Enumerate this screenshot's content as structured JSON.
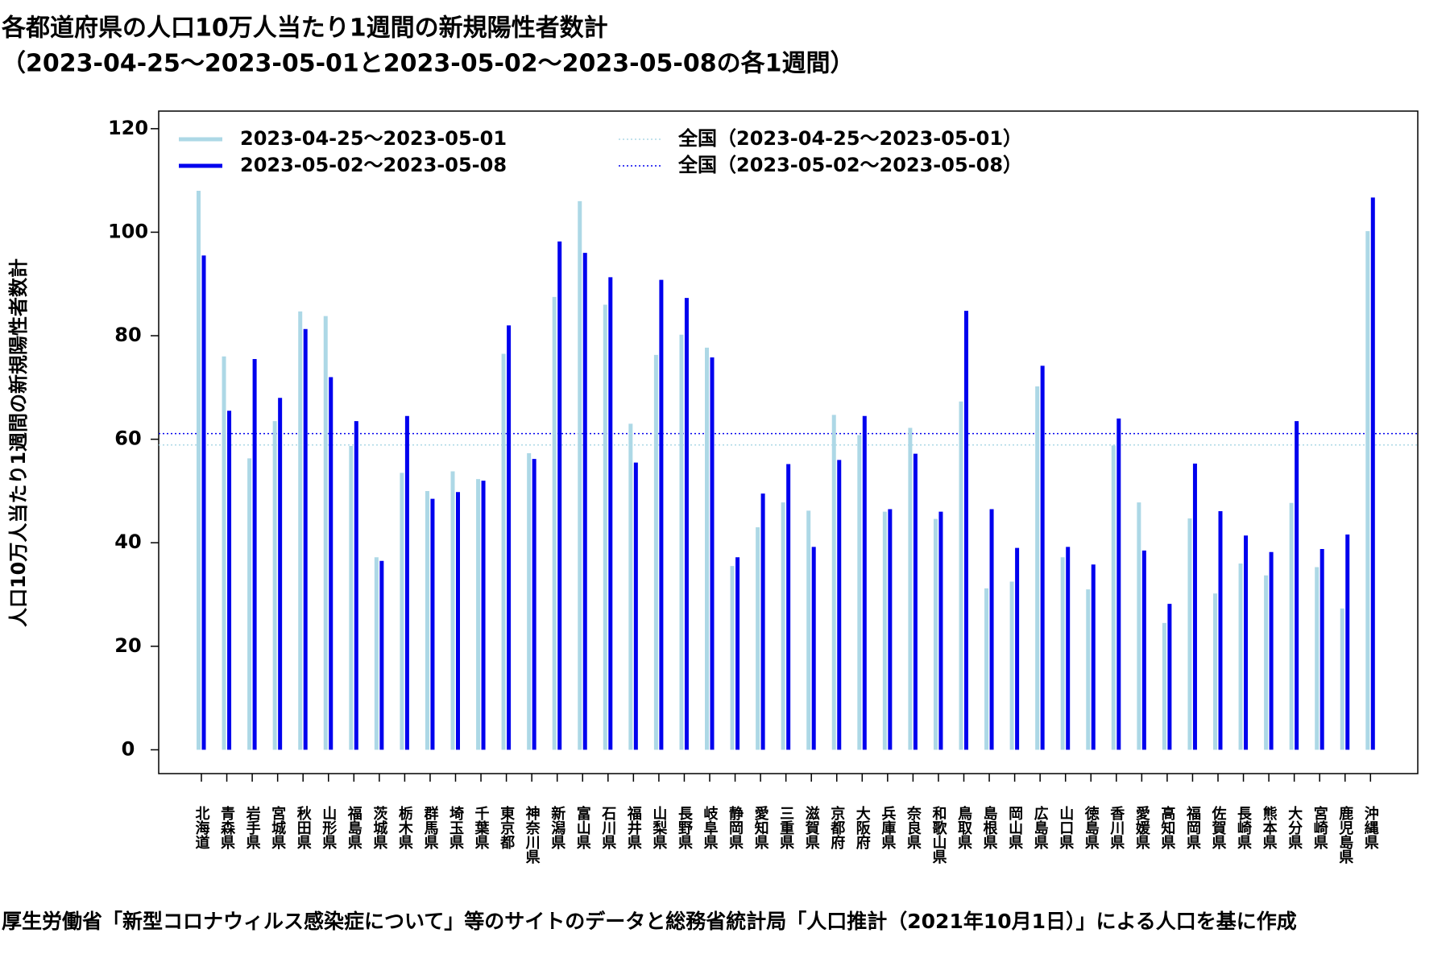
{
  "chart_data": {
    "type": "bar",
    "title": "各都道府県の人口10万人当たり1週間の新規陽性者数計",
    "subtitle": "（2023-04-25～2023-05-01と2023-05-02～2023-05-08の各1週間）",
    "y_label": "人口10万人当たり1週間の新規陽性者数計",
    "note": "厚生労働省「新型コロナウィルス感染症について」等のサイトのデータと総務省統計局「人口推計（2021年10月1日）」による人口を基に作成",
    "categories": [
      "北海道",
      "青森県",
      "岩手県",
      "宮城県",
      "秋田県",
      "山形県",
      "福島県",
      "茨城県",
      "栃木県",
      "群馬県",
      "埼玉県",
      "千葉県",
      "東京都",
      "神奈川県",
      "新潟県",
      "富山県",
      "石川県",
      "福井県",
      "山梨県",
      "長野県",
      "岐阜県",
      "静岡県",
      "愛知県",
      "三重県",
      "滋賀県",
      "京都府",
      "大阪府",
      "兵庫県",
      "奈良県",
      "和歌山県",
      "鳥取県",
      "島根県",
      "岡山県",
      "広島県",
      "山口県",
      "徳島県",
      "香川県",
      "愛媛県",
      "高知県",
      "福岡県",
      "佐賀県",
      "長崎県",
      "熊本県",
      "大分県",
      "宮崎県",
      "鹿児島県",
      "沖縄県"
    ],
    "series": [
      {
        "name": "2023-04-25～2023-05-01",
        "color": "#add8e6",
        "values": [
          108,
          76,
          56.3,
          63.5,
          84.7,
          83.8,
          58.7,
          37.2,
          53.5,
          50,
          53.8,
          52.3,
          76.5,
          57.3,
          87.5,
          106,
          86,
          63,
          76.3,
          80.2,
          77.7,
          35.5,
          43,
          47.8,
          46.2,
          64.7,
          60.8,
          46,
          62.2,
          44.6,
          67.3,
          31.2,
          32.5,
          70.2,
          37.2,
          31,
          58.8,
          47.8,
          24.5,
          44.7,
          30.2,
          36,
          33.7,
          47.7,
          35.3,
          27.3,
          100.2
        ]
      },
      {
        "name": "2023-05-02～2023-05-08",
        "color": "#0000ee",
        "values": [
          95.5,
          65.5,
          75.5,
          68,
          81.3,
          72,
          63.5,
          36.5,
          64.5,
          48.5,
          49.8,
          52,
          82,
          56.2,
          98.2,
          96,
          91.3,
          55.5,
          90.8,
          87.3,
          75.8,
          37.2,
          49.5,
          55.2,
          39.2,
          56,
          64.5,
          46.5,
          57.2,
          46,
          84.8,
          46.5,
          39,
          74.2,
          39.2,
          35.8,
          64,
          38.5,
          28.2,
          55.3,
          46.1,
          41.4,
          38.2,
          63.5,
          38.8,
          41.6,
          106.7
        ]
      }
    ],
    "reference_lines": [
      {
        "name": "全国（2023-04-25～2023-05-01）",
        "color": "#add8e6",
        "value": 58.9
      },
      {
        "name": "全国（2023-05-02～2023-05-08）",
        "color": "#0000ee",
        "value": 61.1
      }
    ],
    "ylim": [
      -4.6,
      123.4
    ],
    "yticks": [
      0,
      20,
      40,
      60,
      80,
      100,
      120
    ]
  }
}
